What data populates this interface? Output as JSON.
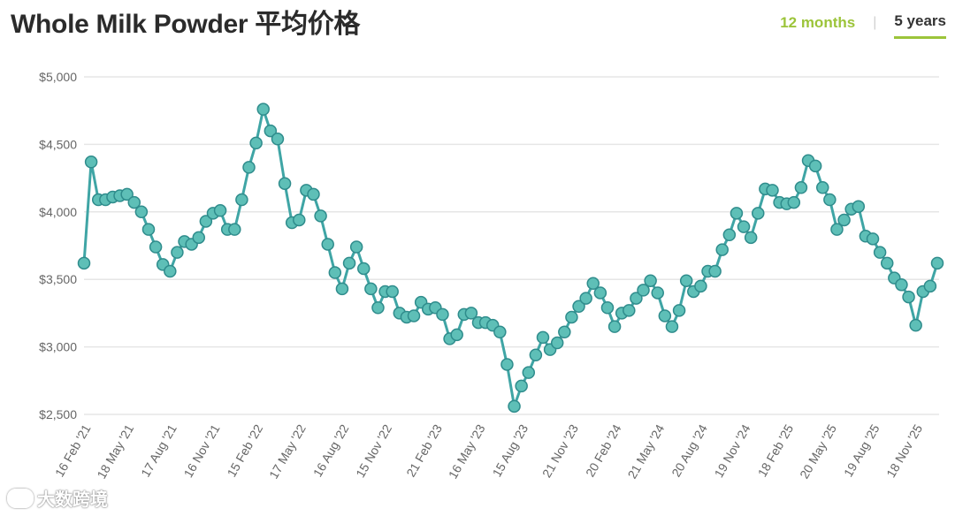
{
  "header": {
    "title": "Whole Milk Powder 平均价格",
    "range_options": [
      "12 months",
      "5 years"
    ],
    "active_range": "5 years"
  },
  "colors": {
    "line": "#3fa5a5",
    "marker_fill": "#5ebfb7",
    "marker_stroke": "#2f8c8c",
    "grid": "#e6e6e6",
    "axis_text": "#666666",
    "accent": "#9cc43a"
  },
  "watermark": "大数跨境",
  "chart_data": {
    "type": "line",
    "title": "Whole Milk Powder 平均价格",
    "xlabel": "",
    "ylabel": "",
    "ylim": [
      2500,
      5000
    ],
    "yticks": [
      2500,
      3000,
      3500,
      4000,
      4500,
      5000
    ],
    "ytick_labels": [
      "$2,500",
      "$3,000",
      "$3,500",
      "$4,000",
      "$4,500",
      "$5,000"
    ],
    "grid": true,
    "legend": "none",
    "x_ticks": [
      {
        "label": "16 Feb '21",
        "index": 0
      },
      {
        "label": "18 May '21",
        "index": 6
      },
      {
        "label": "17 Aug '21",
        "index": 12
      },
      {
        "label": "16 Nov '21",
        "index": 18
      },
      {
        "label": "15 Feb '22",
        "index": 24
      },
      {
        "label": "17 May '22",
        "index": 30
      },
      {
        "label": "16 Aug '22",
        "index": 36
      },
      {
        "label": "15 Nov '22",
        "index": 42
      },
      {
        "label": "21 Feb '23",
        "index": 49
      },
      {
        "label": "16 May '23",
        "index": 55
      },
      {
        "label": "15 Aug '23",
        "index": 61
      },
      {
        "label": "21 Nov '23",
        "index": 68
      },
      {
        "label": "20 Feb '24",
        "index": 74
      },
      {
        "label": "21 May '24",
        "index": 80
      },
      {
        "label": "20 Aug '24",
        "index": 86
      },
      {
        "label": "19 Nov '24",
        "index": 92
      },
      {
        "label": "18 Feb '25",
        "index": 98
      },
      {
        "label": "20 May '25",
        "index": 104
      },
      {
        "label": "19 Aug '25",
        "index": 110
      },
      {
        "label": "18 Nov '25",
        "index": 116
      }
    ],
    "series": [
      {
        "values": [
          3620,
          4370,
          4090,
          4090,
          4110,
          4120,
          4130,
          4070,
          4000,
          3870,
          3740,
          3610,
          3560,
          3700,
          3780,
          3760,
          3810,
          3930,
          3990,
          4010,
          3870,
          3870,
          4090,
          4330,
          4510,
          4760,
          4600,
          4540,
          4210,
          3920,
          3940,
          4160,
          4130,
          3970,
          3760,
          3550,
          3430,
          3620,
          3740,
          3580,
          3430,
          3290,
          3410,
          3410,
          3250,
          3220,
          3230,
          3330,
          3280,
          3290,
          3240,
          3060,
          3090,
          3240,
          3250,
          3180,
          3180,
          3160,
          3110,
          2870,
          2560,
          2710,
          2810,
          2940,
          3070,
          2980,
          3030,
          3110,
          3220,
          3300,
          3360,
          3470,
          3400,
          3290,
          3150,
          3250,
          3270,
          3360,
          3420,
          3490,
          3400,
          3230,
          3150,
          3270,
          3490,
          3410,
          3450,
          3560,
          3560,
          3720,
          3830,
          3990,
          3890,
          3810,
          3990,
          4170,
          4160,
          4070,
          4060,
          4070,
          4180,
          4380,
          4340,
          4180,
          4090,
          3870,
          3940,
          4020,
          4040,
          3820,
          3800,
          3700,
          3620,
          3510,
          3460,
          3370,
          3160,
          3410,
          3450,
          3620
        ]
      }
    ]
  }
}
